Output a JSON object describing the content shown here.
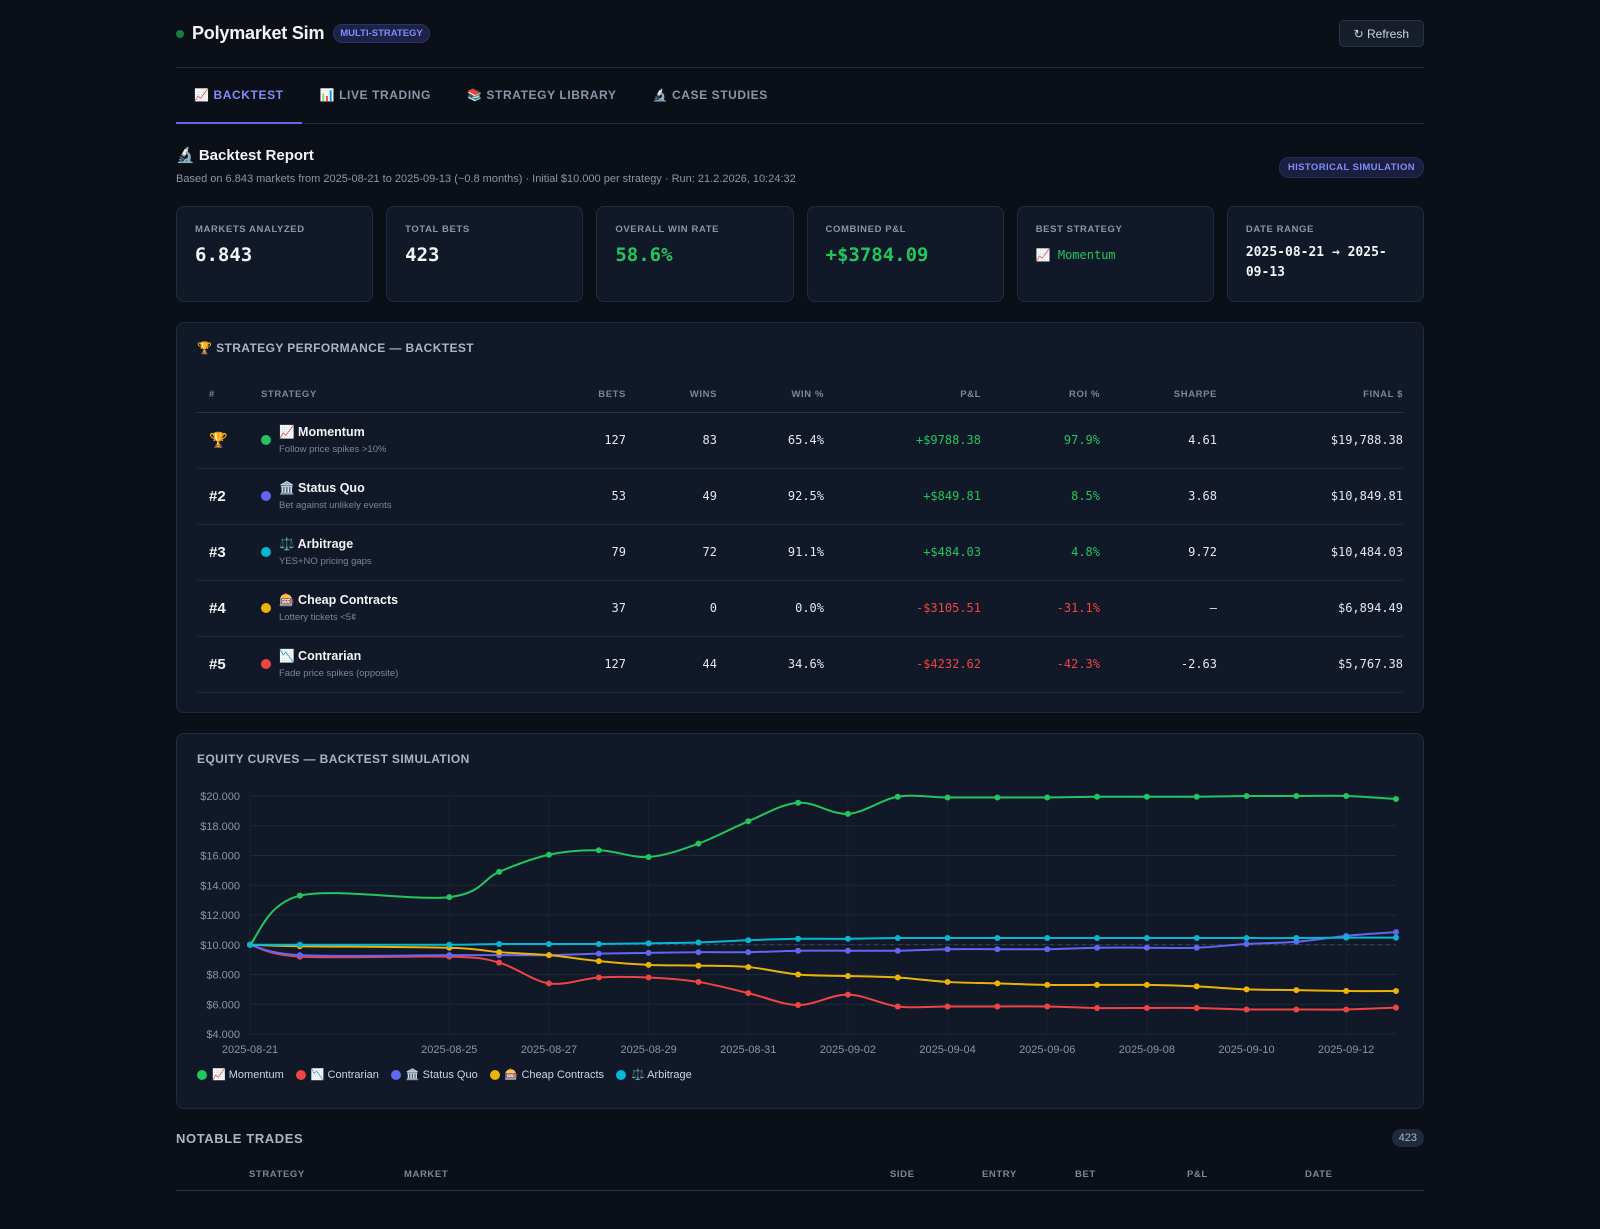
{
  "header": {
    "title": "Polymarket Sim",
    "badge": "MULTI-STRATEGY",
    "refresh_label": "↻ Refresh"
  },
  "tabs": [
    {
      "label": "📈 BACKTEST",
      "active": true
    },
    {
      "label": "📊 LIVE TRADING"
    },
    {
      "label": "📚 STRATEGY LIBRARY"
    },
    {
      "label": "🔬 CASE STUDIES"
    }
  ],
  "report": {
    "title": "🔬 Backtest Report",
    "subtitle": "Based on 6.843 markets from 2025-08-21 to 2025-09-13 (~0.8 months) · Initial $10.000 per strategy · Run: 21.2.2026, 10:24:32",
    "badge": "HISTORICAL SIMULATION"
  },
  "cards": [
    {
      "label": "MARKETS ANALYZED",
      "value": "6.843"
    },
    {
      "label": "TOTAL BETS",
      "value": "423"
    },
    {
      "label": "OVERALL WIN RATE",
      "value": "58.6%"
    },
    {
      "label": "COMBINED P&L",
      "value": "+$3784.09"
    },
    {
      "label": "BEST STRATEGY",
      "value": "📈 Momentum"
    },
    {
      "label": "DATE RANGE",
      "value": "2025-08-21 → 2025-09-13"
    }
  ],
  "performance": {
    "title": "🏆 STRATEGY PERFORMANCE — BACKTEST",
    "columns": [
      "#",
      "STRATEGY",
      "BETS",
      "WINS",
      "WIN %",
      "P&L",
      "ROI %",
      "SHARPE",
      "FINAL $"
    ],
    "rows": [
      {
        "rank": "🏆",
        "color": "#22c55e",
        "name": "📈 Momentum",
        "desc": "Follow price spikes >10%",
        "bets": "127",
        "wins": "83",
        "win_pct": "65.4%",
        "pnl": "+$9788.38",
        "roi": "97.9%",
        "sharpe": "4.61",
        "final": "$19,788.38",
        "positive": true
      },
      {
        "rank": "#2",
        "color": "#6366f1",
        "name": "🏛️ Status Quo",
        "desc": "Bet against unlikely events",
        "bets": "53",
        "wins": "49",
        "win_pct": "92.5%",
        "pnl": "+$849.81",
        "roi": "8.5%",
        "sharpe": "3.68",
        "final": "$10,849.81",
        "positive": true
      },
      {
        "rank": "#3",
        "color": "#06b6d4",
        "name": "⚖️ Arbitrage",
        "desc": "YES+NO pricing gaps",
        "bets": "79",
        "wins": "72",
        "win_pct": "91.1%",
        "pnl": "+$484.03",
        "roi": "4.8%",
        "sharpe": "9.72",
        "final": "$10,484.03",
        "positive": true
      },
      {
        "rank": "#4",
        "color": "#eab308",
        "name": "🎰 Cheap Contracts",
        "desc": "Lottery tickets <5¢",
        "bets": "37",
        "wins": "0",
        "win_pct": "0.0%",
        "pnl": "-$3105.51",
        "roi": "-31.1%",
        "sharpe": "—",
        "final": "$6,894.49",
        "positive": false
      },
      {
        "rank": "#5",
        "color": "#ef4444",
        "name": "📉 Contrarian",
        "desc": "Fade price spikes (opposite)",
        "bets": "127",
        "wins": "44",
        "win_pct": "34.6%",
        "pnl": "-$4232.62",
        "roi": "-42.3%",
        "sharpe": "-2.63",
        "final": "$5,767.38",
        "positive": false
      }
    ]
  },
  "equity": {
    "title": "EQUITY CURVES — BACKTEST SIMULATION"
  },
  "chart_data": {
    "type": "line",
    "title": "EQUITY CURVES — BACKTEST SIMULATION",
    "xlabel": "",
    "ylabel": "",
    "ylim": [
      4000,
      20000
    ],
    "y_ticks": [
      "$4.000",
      "$6.000",
      "$8.000",
      "$10.000",
      "$12.000",
      "$14.000",
      "$16.000",
      "$18.000",
      "$20.000"
    ],
    "x_tick_labels": [
      "2025-08-21",
      "2025-08-25",
      "2025-08-27",
      "2025-08-29",
      "2025-08-31",
      "2025-09-02",
      "2025-09-04",
      "2025-09-06",
      "2025-09-08",
      "2025-09-10",
      "2025-09-12"
    ],
    "x": [
      "2025-08-21",
      "2025-08-22",
      "2025-08-25",
      "2025-08-26",
      "2025-08-27",
      "2025-08-28",
      "2025-08-29",
      "2025-08-30",
      "2025-08-31",
      "2025-09-01",
      "2025-09-02",
      "2025-09-03",
      "2025-09-04",
      "2025-09-05",
      "2025-09-06",
      "2025-09-07",
      "2025-09-08",
      "2025-09-09",
      "2025-09-10",
      "2025-09-11",
      "2025-09-12",
      "2025-09-13"
    ],
    "grid": true,
    "legend": "bottom-left",
    "series": [
      {
        "name": "📈 Momentum",
        "color": "#22c55e",
        "values": [
          10000,
          13300,
          13200,
          14900,
          16050,
          16350,
          15900,
          16800,
          18300,
          19550,
          18800,
          19950,
          19900,
          19900,
          19900,
          19950,
          19950,
          19950,
          20000,
          20000,
          20000,
          19800
        ]
      },
      {
        "name": "📉 Contrarian",
        "color": "#ef4444",
        "values": [
          10000,
          9200,
          9200,
          8800,
          7400,
          7800,
          7800,
          7500,
          6750,
          5950,
          6650,
          5850,
          5850,
          5850,
          5850,
          5750,
          5750,
          5750,
          5650,
          5650,
          5650,
          5770
        ]
      },
      {
        "name": "🏛️ Status Quo",
        "color": "#6366f1",
        "values": [
          10000,
          9300,
          9300,
          9300,
          9300,
          9400,
          9450,
          9500,
          9500,
          9600,
          9600,
          9600,
          9700,
          9700,
          9700,
          9800,
          9800,
          9800,
          10050,
          10200,
          10600,
          10850
        ]
      },
      {
        "name": "🎰 Cheap Contracts",
        "color": "#eab308",
        "values": [
          10000,
          9900,
          9800,
          9500,
          9300,
          8900,
          8650,
          8600,
          8500,
          8000,
          7900,
          7800,
          7500,
          7400,
          7300,
          7300,
          7300,
          7200,
          7000,
          6950,
          6890,
          6890
        ]
      },
      {
        "name": "⚖️ Arbitrage",
        "color": "#06b6d4",
        "values": [
          10000,
          10000,
          10000,
          10050,
          10050,
          10050,
          10100,
          10150,
          10300,
          10400,
          10400,
          10450,
          10450,
          10450,
          10450,
          10450,
          10450,
          10450,
          10450,
          10450,
          10480,
          10480
        ]
      }
    ]
  },
  "notable": {
    "title": "NOTABLE TRADES",
    "count": "423",
    "columns": [
      "STRATEGY",
      "MARKET",
      "SIDE",
      "ENTRY",
      "BET",
      "P&L",
      "DATE"
    ]
  }
}
